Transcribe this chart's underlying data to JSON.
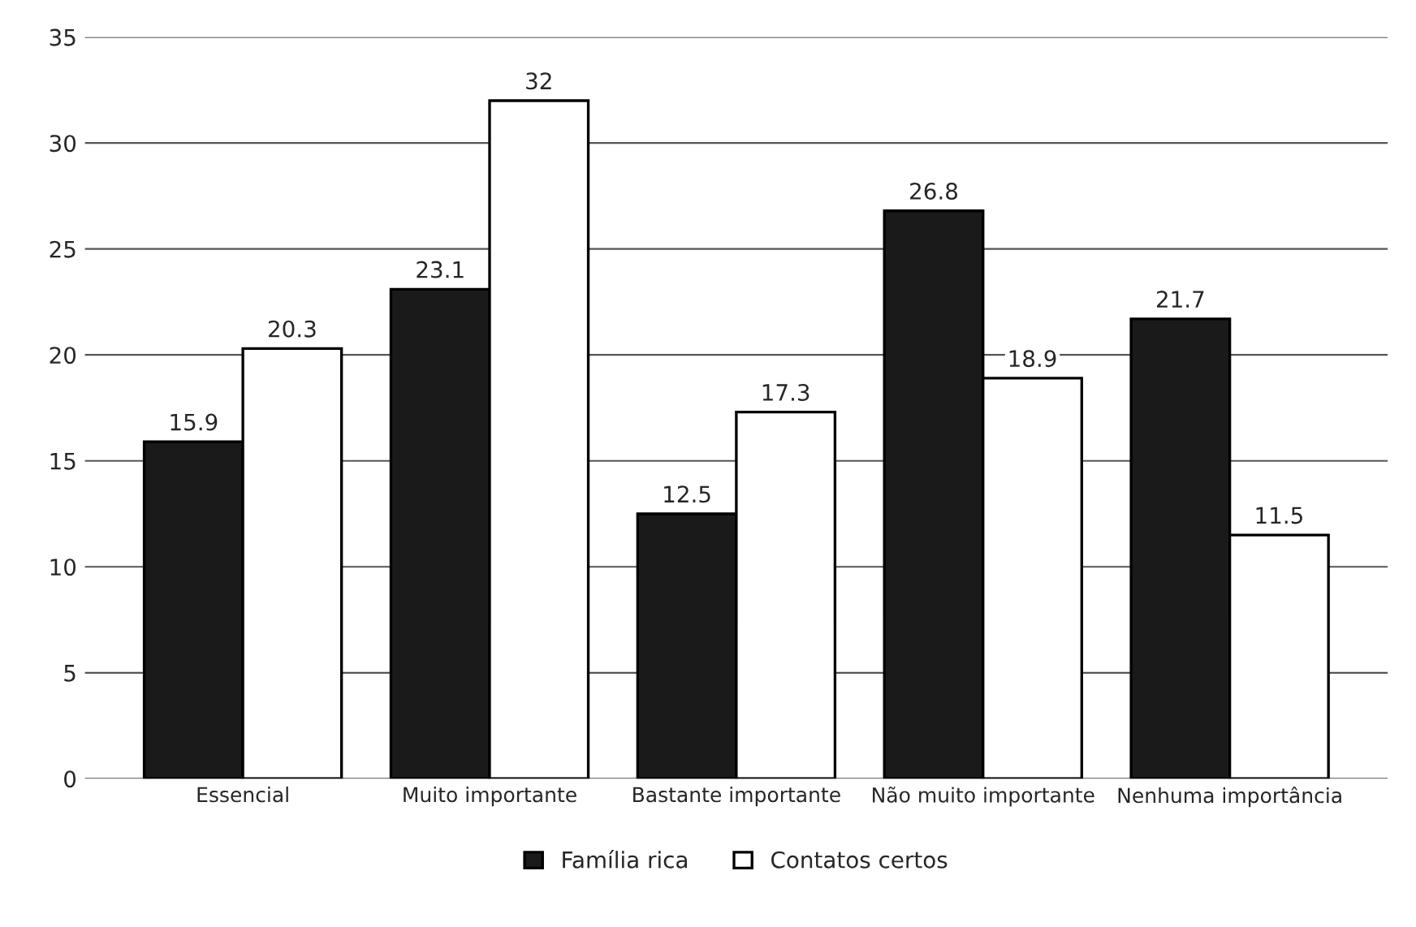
{
  "chart_data": {
    "type": "bar",
    "categories": [
      "Essencial",
      "Muito importante",
      "Bastante importante",
      "Não muito importante",
      "Nenhuma importância"
    ],
    "series": [
      {
        "name": "Família rica",
        "color": "#1a1a1a",
        "values": [
          15.9,
          23.1,
          12.5,
          26.8,
          21.7
        ]
      },
      {
        "name": "Contatos certos",
        "color": "#ffffff",
        "values": [
          20.3,
          32,
          17.3,
          18.9,
          11.5
        ]
      }
    ],
    "ylim": [
      0,
      35
    ],
    "yticks": [
      0,
      5,
      10,
      15,
      20,
      25,
      30,
      35
    ],
    "grid": "y",
    "legend": "bottom",
    "data_labels": true
  }
}
